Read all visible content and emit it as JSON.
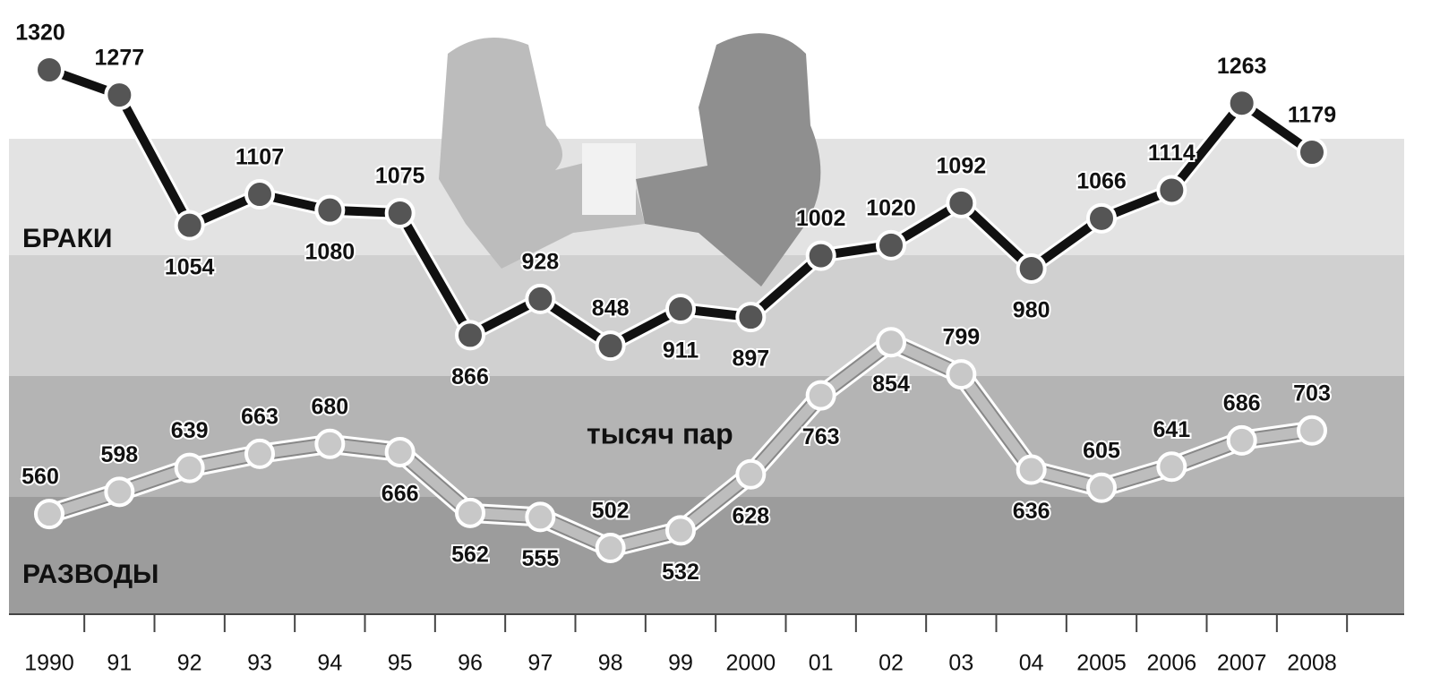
{
  "chart_data": {
    "type": "line",
    "subtitle": "тысяч пар",
    "categories": [
      "1990",
      "91",
      "92",
      "93",
      "94",
      "95",
      "96",
      "97",
      "98",
      "99",
      "2000",
      "01",
      "02",
      "03",
      "04",
      "2005",
      "2006",
      "2007",
      "2008"
    ],
    "series": [
      {
        "name": "БРАКИ",
        "color": "#111111",
        "values": [
          1320,
          1277,
          1054,
          1107,
          1080,
          1075,
          866,
          928,
          848,
          911,
          897,
          1002,
          1020,
          1092,
          980,
          1066,
          1114,
          1263,
          1179
        ]
      },
      {
        "name": "РАЗВОДЫ",
        "color": "#bdbdbd",
        "values": [
          560,
          598,
          639,
          663,
          680,
          666,
          562,
          555,
          502,
          532,
          628,
          763,
          854,
          799,
          636,
          605,
          641,
          686,
          703
        ]
      }
    ]
  }
}
